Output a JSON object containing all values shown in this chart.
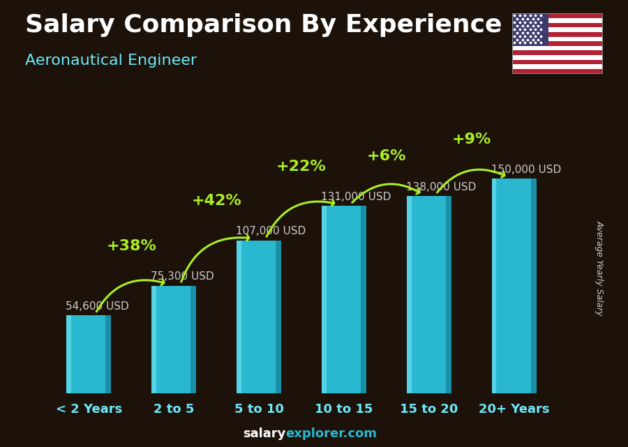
{
  "title": "Salary Comparison By Experience",
  "subtitle": "Aeronautical Engineer",
  "categories": [
    "< 2 Years",
    "2 to 5",
    "5 to 10",
    "10 to 15",
    "15 to 20",
    "20+ Years"
  ],
  "values": [
    54600,
    75300,
    107000,
    131000,
    138000,
    150000
  ],
  "salary_labels": [
    "54,600 USD",
    "75,300 USD",
    "107,000 USD",
    "131,000 USD",
    "138,000 USD",
    "150,000 USD"
  ],
  "pct_changes": [
    "+38%",
    "+42%",
    "+22%",
    "+6%",
    "+9%"
  ],
  "bar_color_main": "#29b8d0",
  "bar_color_light": "#55d4e8",
  "bar_color_dark": "#1a90a8",
  "bg_color": "#1c120a",
  "title_color": "#ffffff",
  "subtitle_color": "#6ee8f8",
  "xlabel_color": "#6ee8f8",
  "salary_label_color": "#cccccc",
  "pct_color": "#aaee22",
  "ylabel_text": "Average Yearly Salary",
  "max_val": 175000,
  "title_fontsize": 26,
  "subtitle_fontsize": 16,
  "axis_label_fontsize": 13,
  "salary_fontsize": 11,
  "pct_fontsize": 16,
  "arrow_color": "#aaee22"
}
